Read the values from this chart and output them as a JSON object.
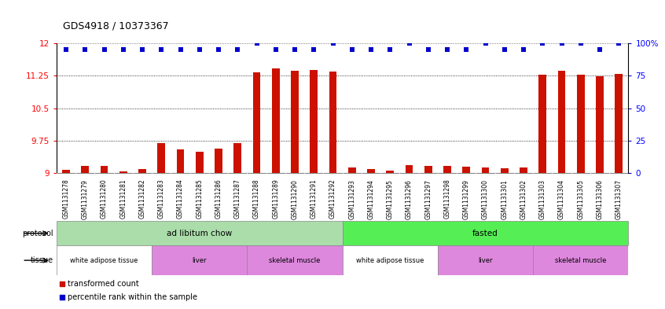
{
  "title": "GDS4918 / 10373367",
  "samples": [
    "GSM1131278",
    "GSM1131279",
    "GSM1131280",
    "GSM1131281",
    "GSM1131282",
    "GSM1131283",
    "GSM1131284",
    "GSM1131285",
    "GSM1131286",
    "GSM1131287",
    "GSM1131288",
    "GSM1131289",
    "GSM1131290",
    "GSM1131291",
    "GSM1131292",
    "GSM1131293",
    "GSM1131294",
    "GSM1131295",
    "GSM1131296",
    "GSM1131297",
    "GSM1131298",
    "GSM1131299",
    "GSM1131300",
    "GSM1131301",
    "GSM1131302",
    "GSM1131303",
    "GSM1131304",
    "GSM1131305",
    "GSM1131306",
    "GSM1131307"
  ],
  "red_values": [
    9.07,
    9.17,
    9.16,
    9.04,
    9.1,
    9.69,
    9.55,
    9.49,
    9.56,
    9.69,
    11.32,
    11.41,
    11.36,
    11.38,
    11.35,
    9.13,
    9.09,
    9.06,
    9.18,
    9.16,
    9.16,
    9.15,
    9.13,
    9.11,
    9.13,
    11.27,
    11.36,
    11.27,
    11.24,
    11.3
  ],
  "blue_values": [
    95,
    95,
    95,
    95,
    95,
    95,
    95,
    95,
    95,
    95,
    100,
    95,
    95,
    95,
    100,
    95,
    95,
    95,
    100,
    95,
    95,
    95,
    100,
    95,
    95,
    100,
    100,
    100,
    95,
    100
  ],
  "ylim_left": [
    9.0,
    12.0
  ],
  "ylim_right": [
    0,
    100
  ],
  "yticks_left": [
    9.0,
    9.75,
    10.5,
    11.25,
    12.0
  ],
  "ytick_labels_left": [
    "9",
    "9.75",
    "10.5",
    "11.25",
    "12"
  ],
  "yticks_right": [
    0,
    25,
    50,
    75,
    100
  ],
  "ytick_labels_right": [
    "0",
    "25",
    "50",
    "75",
    "100%"
  ],
  "bar_color": "#cc1100",
  "dot_color": "#0000cc",
  "protocol_colors": [
    "#aaddaa",
    "#55ee55"
  ],
  "protocol_labels": [
    "ad libitum chow",
    "fasted"
  ],
  "protocol_ranges": [
    [
      0,
      15
    ],
    [
      15,
      30
    ]
  ],
  "tissue_groups": [
    {
      "label": "white adipose tissue",
      "range": [
        0,
        5
      ],
      "color": "#ffffff"
    },
    {
      "label": "liver",
      "range": [
        5,
        10
      ],
      "color": "#dd88dd"
    },
    {
      "label": "skeletal muscle",
      "range": [
        10,
        15
      ],
      "color": "#dd88dd"
    },
    {
      "label": "white adipose tissue",
      "range": [
        15,
        20
      ],
      "color": "#ffffff"
    },
    {
      "label": "liver",
      "range": [
        20,
        25
      ],
      "color": "#dd88dd"
    },
    {
      "label": "skeletal muscle",
      "range": [
        25,
        30
      ],
      "color": "#dd88dd"
    }
  ],
  "xtick_bg_color": "#cccccc",
  "bar_width": 0.4
}
